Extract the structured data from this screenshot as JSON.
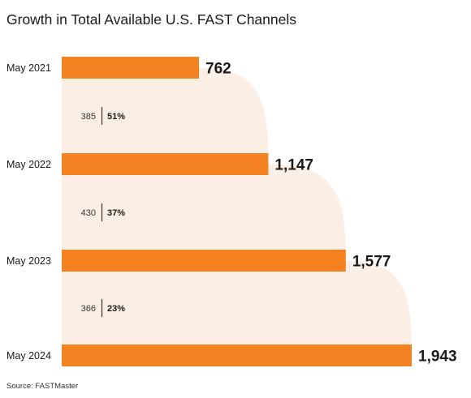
{
  "chart_data": {
    "type": "bar",
    "title": "Growth in Total Available U.S. FAST Channels",
    "source": "Source: FASTMaster",
    "categories": [
      "May 2021",
      "May 2022",
      "May 2023",
      "May 2024"
    ],
    "values": [
      762,
      1147,
      1577,
      1943
    ],
    "value_labels": [
      "762",
      "1,147",
      "1,577",
      "1,943"
    ],
    "growth": [
      {
        "change": "385",
        "percent": "51%"
      },
      {
        "change": "430",
        "percent": "37%"
      },
      {
        "change": "366",
        "percent": "23%"
      }
    ],
    "xlim": [
      0,
      2000
    ],
    "colors": {
      "bar": "#f58220",
      "band": "#fbeee4",
      "text": "#1a1a1a"
    }
  }
}
